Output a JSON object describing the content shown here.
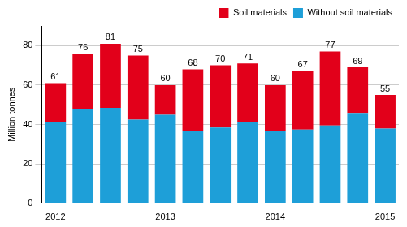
{
  "chart_data": {
    "type": "bar",
    "stacked": true,
    "categories": [
      "2012",
      null,
      null,
      null,
      "2013",
      null,
      null,
      null,
      "2014",
      null,
      null,
      null,
      "2015"
    ],
    "series": [
      {
        "name": "Without soil materials",
        "color": "#1e9fd8",
        "values": [
          41.5,
          48,
          48.5,
          42.5,
          45,
          36.5,
          38.5,
          41,
          36.5,
          37.5,
          39.5,
          45.5,
          38
        ]
      },
      {
        "name": "Soil materials",
        "color": "#e2001a",
        "values": [
          19.5,
          28,
          32.5,
          32.5,
          15,
          31.5,
          31.5,
          30,
          23.5,
          29.5,
          37.5,
          23.5,
          17
        ]
      }
    ],
    "totals": [
      61,
      76,
      81,
      75,
      60,
      68,
      70,
      71,
      60,
      67,
      77,
      69,
      55
    ],
    "y_label": "Million tonnes",
    "ylim": [
      0,
      90
    ],
    "yticks": [
      0,
      20,
      40,
      60,
      80
    ],
    "grid": true,
    "legend": "upper right"
  }
}
